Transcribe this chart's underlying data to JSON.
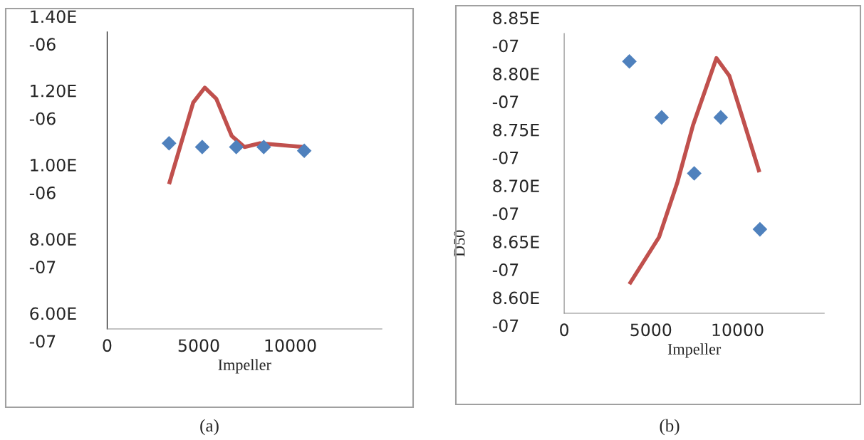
{
  "chart_data": [
    {
      "type": "scatter",
      "xlabel": "Impeller",
      "annotations": [
        "(a)"
      ],
      "xlim": [
        0,
        15000
      ],
      "xticks": [
        0,
        5000,
        10000
      ],
      "ylim": [
        6e-07,
        1.4e-06
      ],
      "yticks": [
        {
          "value": 6e-07,
          "label": "6.00E-07"
        },
        {
          "value": 8e-07,
          "label": "8.00E-07"
        },
        {
          "value": 1e-06,
          "label": "1.00E-06"
        },
        {
          "value": 1.2e-06,
          "label": "1.20E-06"
        },
        {
          "value": 1.4e-06,
          "label": "1.40E-06"
        }
      ],
      "series": [
        {
          "color": "#4f81bd",
          "marker": "diamond",
          "x": [
            3380,
            5190,
            7050,
            8550,
            10760
          ],
          "values": [
            1.1e-06,
            1.09e-06,
            1.09e-06,
            1.09e-06,
            1.08e-06
          ]
        },
        {
          "type": "line",
          "color": "#c0504d",
          "x": [
            3380,
            4700,
            5330,
            5960,
            6800,
            7500,
            8340,
            10730
          ],
          "values": [
            9.9e-07,
            1.21e-06,
            1.25e-06,
            1.22e-06,
            1.12e-06,
            1.09e-06,
            1.1e-06,
            1.09e-06
          ]
        }
      ]
    },
    {
      "type": "scatter",
      "xlabel": "Impeller",
      "ylabel": "D50",
      "annotations": [
        "(b)"
      ],
      "xlim": [
        0,
        15000
      ],
      "xticks": [
        0,
        5000,
        10000
      ],
      "ylim": [
        8.6e-07,
        8.85e-07
      ],
      "yticks": [
        {
          "value": 8.6e-07,
          "label": "8.60E-07"
        },
        {
          "value": 8.65e-07,
          "label": "8.65E-07"
        },
        {
          "value": 8.7e-07,
          "label": "8.70E-07"
        },
        {
          "value": 8.75e-07,
          "label": "8.75E-07"
        },
        {
          "value": 8.8e-07,
          "label": "8.80E-07"
        },
        {
          "value": 8.85e-07,
          "label": "8.85E-07"
        }
      ],
      "series": [
        {
          "color": "#4f81bd",
          "marker": "diamond",
          "x": [
            3760,
            5620,
            7500,
            9030,
            11290
          ],
          "values": [
            8.825e-07,
            8.775e-07,
            8.725e-07,
            8.775e-07,
            8.675e-07
          ]
        },
        {
          "type": "line",
          "color": "#c0504d",
          "x": [
            3760,
            5470,
            6530,
            7430,
            8780,
            9530,
            10280,
            11260
          ],
          "values": [
            8.626e-07,
            8.668e-07,
            8.717e-07,
            8.768e-07,
            8.828e-07,
            8.812e-07,
            8.775e-07,
            8.726e-07
          ]
        }
      ]
    }
  ]
}
